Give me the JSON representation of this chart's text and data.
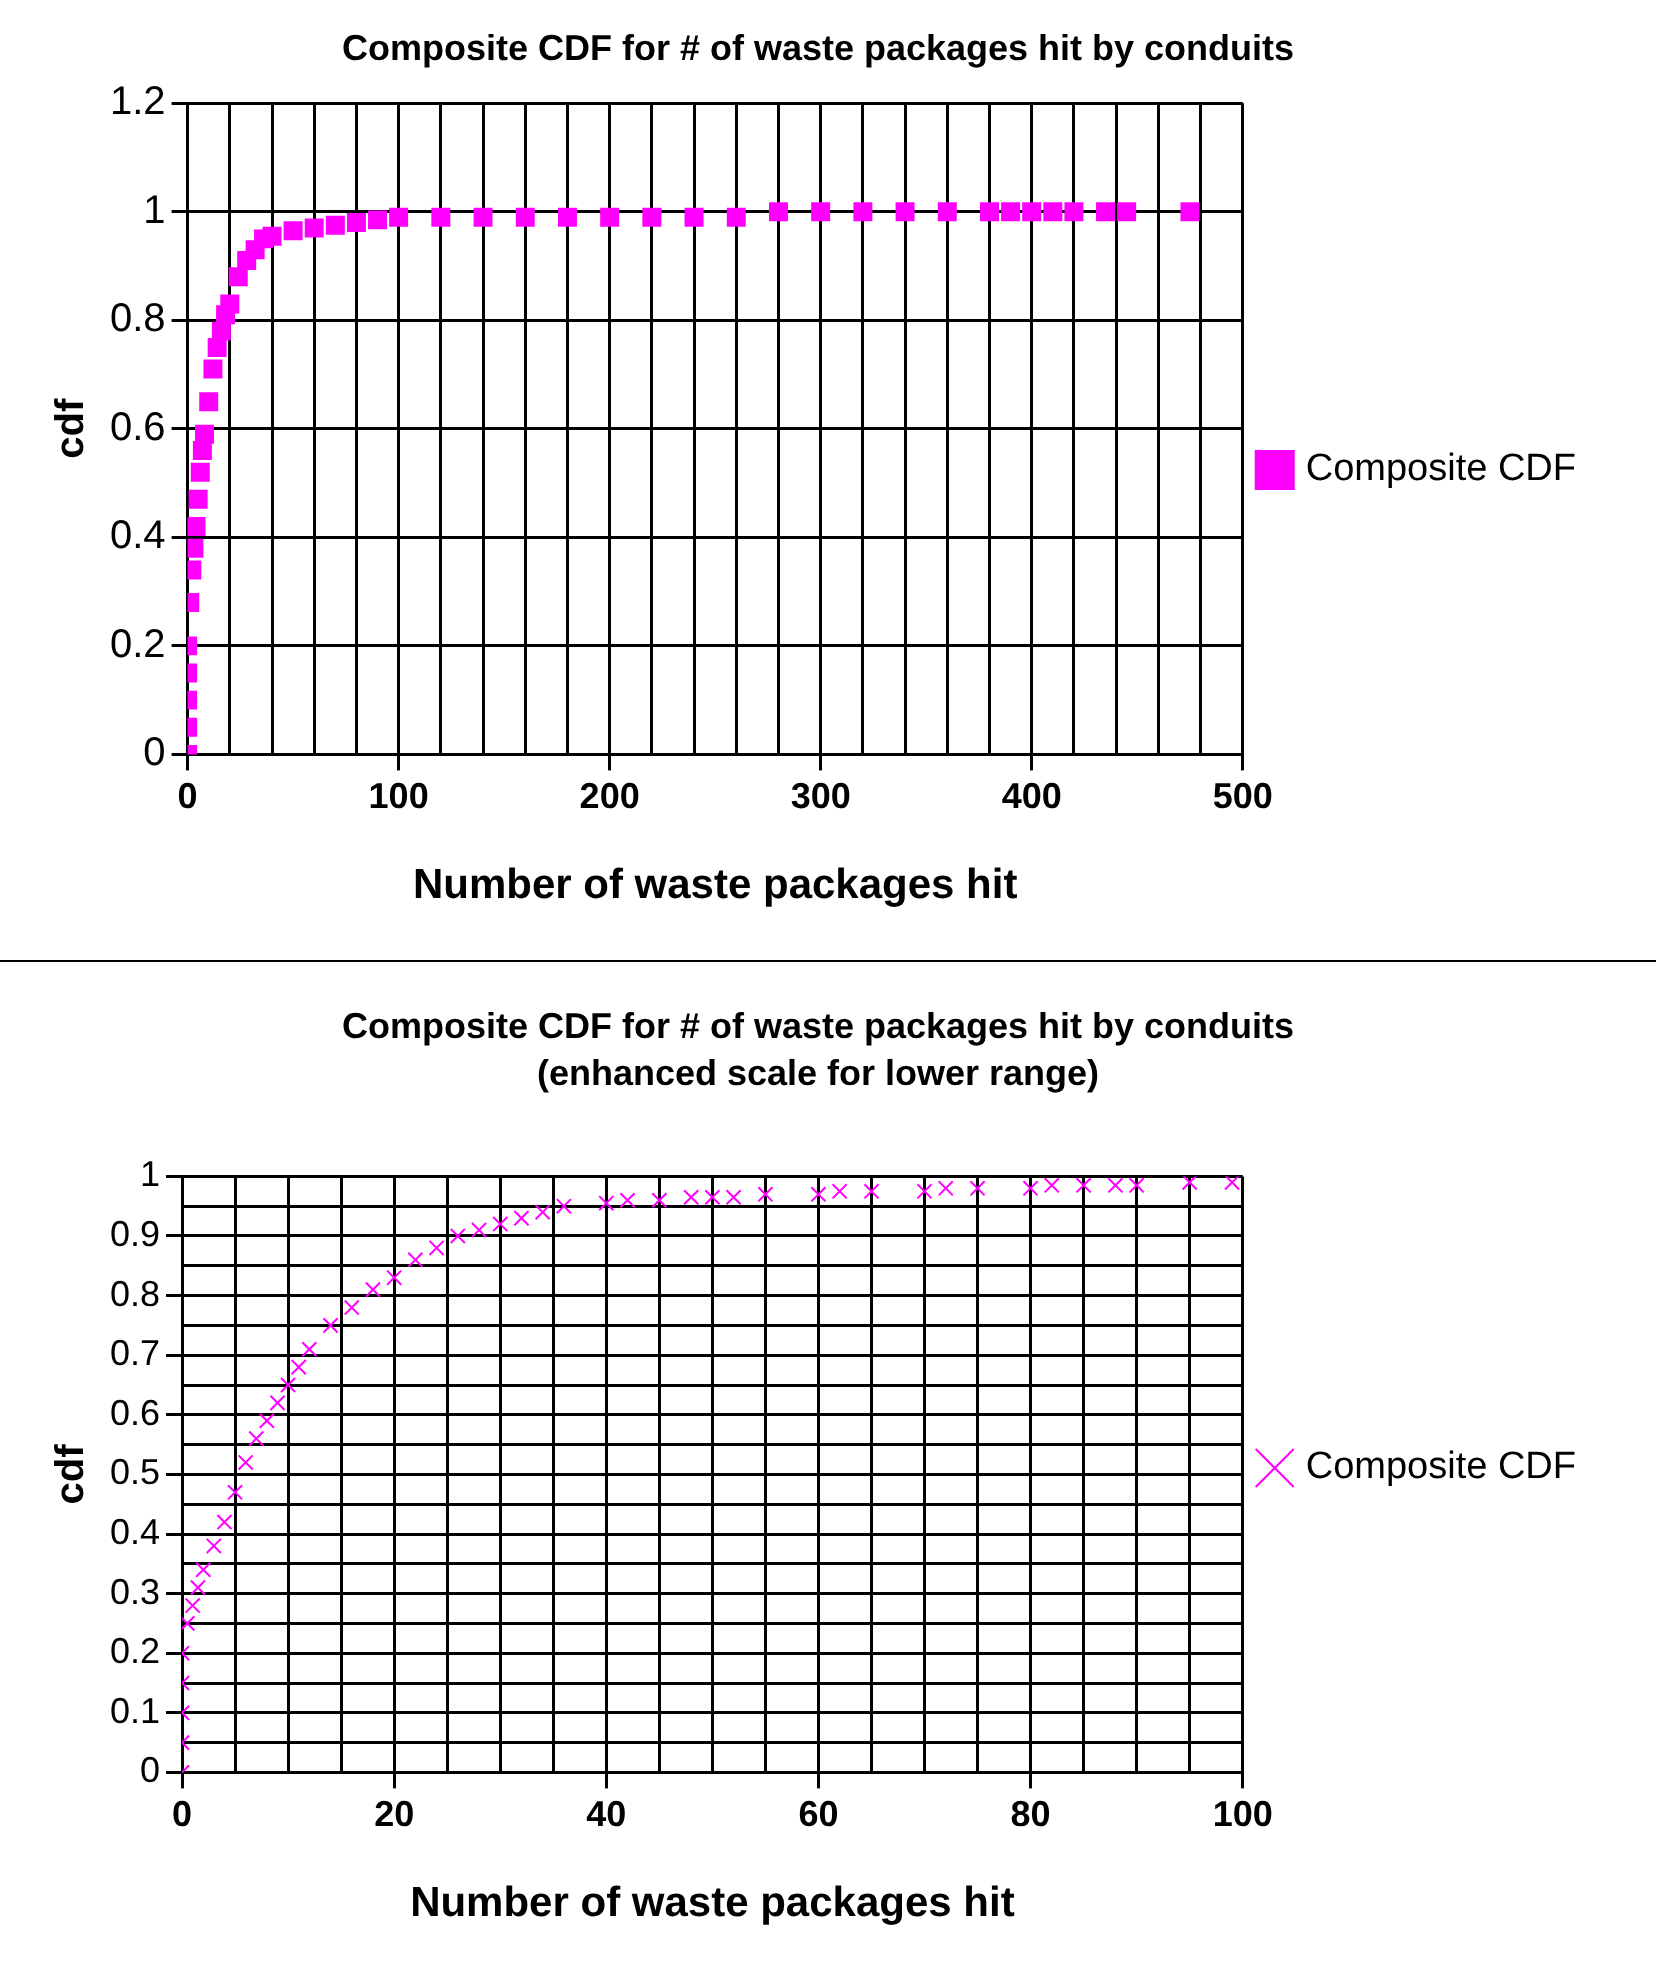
{
  "chart_data": [
    {
      "type": "scatter",
      "title": "Composite CDF for # of waste packages hit by conduits",
      "xlabel": "Number of waste packages hit",
      "ylabel": "cdf",
      "marker": "square",
      "legend": "right",
      "grid": true,
      "xlim": [
        0,
        500
      ],
      "ylim": [
        0,
        1.2
      ],
      "xticks": [
        0,
        {
          "value": 20,
          "label": null
        },
        {
          "value": 40,
          "label": null
        },
        {
          "value": 60,
          "label": null
        },
        {
          "value": 80,
          "label": null
        },
        100,
        {
          "value": 120,
          "label": null
        },
        {
          "value": 140,
          "label": null
        },
        {
          "value": 160,
          "label": null
        },
        {
          "value": 180,
          "label": null
        },
        200,
        {
          "value": 220,
          "label": null
        },
        {
          "value": 240,
          "label": null
        },
        {
          "value": 260,
          "label": null
        },
        {
          "value": 280,
          "label": null
        },
        300,
        {
          "value": 320,
          "label": null
        },
        {
          "value": 340,
          "label": null
        },
        {
          "value": 360,
          "label": null
        },
        {
          "value": 380,
          "label": null
        },
        400,
        {
          "value": 420,
          "label": null
        },
        {
          "value": 440,
          "label": null
        },
        {
          "value": 460,
          "label": null
        },
        {
          "value": 480,
          "label": null
        },
        500
      ],
      "yticks": [
        0,
        0.2,
        0.4,
        0.6,
        0.8,
        1,
        1.2
      ],
      "series": [
        {
          "name": "Composite CDF",
          "color": "#ff00ff",
          "x": [
            0,
            0,
            0,
            0,
            0,
            1,
            2,
            3,
            4,
            5,
            6,
            7,
            8,
            10,
            12,
            14,
            16,
            18,
            20,
            24,
            28,
            32,
            36,
            40,
            50,
            60,
            70,
            80,
            90,
            100,
            120,
            140,
            160,
            180,
            200,
            220,
            240,
            260,
            280,
            300,
            320,
            340,
            360,
            380,
            390,
            400,
            410,
            420,
            435,
            445,
            475
          ],
          "values": [
            0,
            0.05,
            0.1,
            0.15,
            0.2,
            0.28,
            0.34,
            0.38,
            0.42,
            0.47,
            0.52,
            0.56,
            0.59,
            0.65,
            0.71,
            0.75,
            0.78,
            0.81,
            0.83,
            0.88,
            0.91,
            0.93,
            0.95,
            0.955,
            0.965,
            0.97,
            0.975,
            0.98,
            0.985,
            0.99,
            0.99,
            0.99,
            0.99,
            0.99,
            0.99,
            0.99,
            0.99,
            0.99,
            1,
            1,
            1,
            1,
            1,
            1,
            1,
            1,
            1,
            1,
            1,
            1,
            1
          ]
        }
      ]
    },
    {
      "type": "scatter",
      "title": "Composite CDF for # of waste packages hit by conduits",
      "subtitle": "(enhanced scale for lower range)",
      "xlabel": "Number of waste packages hit",
      "ylabel": "cdf",
      "marker": "cross",
      "legend": "right",
      "grid": true,
      "xlim": [
        0,
        100
      ],
      "ylim": [
        0,
        1
      ],
      "xticks": [
        0,
        {
          "value": 5,
          "label": null
        },
        {
          "value": 10,
          "label": null
        },
        {
          "value": 15,
          "label": null
        },
        20,
        {
          "value": 25,
          "label": null
        },
        {
          "value": 30,
          "label": null
        },
        {
          "value": 35,
          "label": null
        },
        40,
        {
          "value": 45,
          "label": null
        },
        {
          "value": 50,
          "label": null
        },
        {
          "value": 55,
          "label": null
        },
        60,
        {
          "value": 65,
          "label": null
        },
        {
          "value": 70,
          "label": null
        },
        {
          "value": 75,
          "label": null
        },
        80,
        {
          "value": 85,
          "label": null
        },
        {
          "value": 90,
          "label": null
        },
        {
          "value": 95,
          "label": null
        },
        100
      ],
      "yticks": [
        0,
        {
          "value": 0.05,
          "label": null
        },
        0.1,
        {
          "value": 0.15,
          "label": null
        },
        0.2,
        {
          "value": 0.25,
          "label": null
        },
        0.3,
        {
          "value": 0.35,
          "label": null
        },
        0.4,
        {
          "value": 0.45,
          "label": null
        },
        0.5,
        {
          "value": 0.55,
          "label": null
        },
        0.6,
        {
          "value": 0.65,
          "label": null
        },
        0.7,
        {
          "value": 0.75,
          "label": null
        },
        0.8,
        {
          "value": 0.85,
          "label": null
        },
        0.9,
        {
          "value": 0.95,
          "label": null
        },
        1
      ],
      "series": [
        {
          "name": "Composite CDF",
          "color": "#ff00ff",
          "x": [
            0,
            0,
            0,
            0,
            0,
            0.5,
            1,
            1.5,
            2,
            3,
            4,
            5,
            6,
            7,
            8,
            9,
            10,
            11,
            12,
            14,
            16,
            18,
            20,
            22,
            24,
            26,
            28,
            30,
            32,
            34,
            36,
            40,
            42,
            45,
            48,
            50,
            52,
            55,
            60,
            62,
            65,
            70,
            72,
            75,
            80,
            82,
            85,
            88,
            90,
            95,
            99
          ],
          "values": [
            0,
            0.05,
            0.1,
            0.15,
            0.2,
            0.25,
            0.28,
            0.31,
            0.34,
            0.38,
            0.42,
            0.47,
            0.52,
            0.56,
            0.59,
            0.62,
            0.65,
            0.68,
            0.71,
            0.75,
            0.78,
            0.81,
            0.83,
            0.86,
            0.88,
            0.9,
            0.91,
            0.92,
            0.93,
            0.94,
            0.95,
            0.955,
            0.96,
            0.96,
            0.965,
            0.965,
            0.965,
            0.97,
            0.97,
            0.975,
            0.975,
            0.975,
            0.98,
            0.98,
            0.98,
            0.985,
            0.985,
            0.985,
            0.985,
            0.99,
            0.99
          ]
        }
      ]
    }
  ]
}
